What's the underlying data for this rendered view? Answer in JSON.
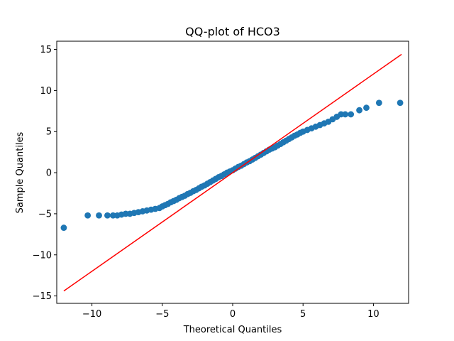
{
  "chart_data": {
    "type": "scatter",
    "title": "QQ-plot of HCO3",
    "xlabel": "Theoretical Quantiles",
    "ylabel": "Sample Quantiles",
    "xlim": [
      -12.5,
      12.5
    ],
    "ylim": [
      -15.9,
      16.0
    ],
    "xticks": [
      -10,
      -5,
      0,
      5,
      10
    ],
    "yticks": [
      -15,
      -10,
      -5,
      0,
      5,
      10,
      15
    ],
    "xtick_labels": [
      "−10",
      "−5",
      "0",
      "5",
      "10"
    ],
    "ytick_labels": [
      "−15",
      "−10",
      "−5",
      "0",
      "5",
      "10",
      "15"
    ],
    "grid": false,
    "point_color": "#1f77b4",
    "line_color": "#ff0000",
    "reference_line": {
      "x": [
        -12.0,
        12.0
      ],
      "y": [
        -14.4,
        14.4
      ]
    },
    "series": [
      {
        "x": [
          -12.0,
          -10.3,
          -9.5,
          -8.9,
          -8.5,
          -8.2,
          -7.9,
          -7.6,
          -7.3,
          -7.0,
          -6.7,
          -6.4,
          -6.1,
          -5.8,
          -5.5,
          -5.2,
          -5.0,
          -4.8,
          -4.6,
          -4.4,
          -4.2,
          -4.0,
          -3.8,
          -3.6,
          -3.4,
          -3.2,
          -3.0,
          -2.8,
          -2.6,
          -2.4,
          -2.2,
          -2.0,
          -1.8,
          -1.6,
          -1.4,
          -1.2,
          -1.0,
          -0.8,
          -0.6,
          -0.4,
          -0.2,
          0.0,
          0.2,
          0.4,
          0.6,
          0.8,
          1.0,
          1.2,
          1.4,
          1.6,
          1.8,
          2.0,
          2.2,
          2.4,
          2.6,
          2.8,
          3.0,
          3.2,
          3.4,
          3.6,
          3.8,
          4.0,
          4.2,
          4.4,
          4.6,
          4.8,
          5.0,
          5.3,
          5.6,
          5.9,
          6.2,
          6.5,
          6.8,
          7.1,
          7.4,
          7.7,
          8.0,
          8.4,
          9.0,
          9.5,
          10.4,
          11.9
        ],
        "y": [
          -6.7,
          -5.2,
          -5.2,
          -5.2,
          -5.2,
          -5.2,
          -5.1,
          -5.0,
          -5.0,
          -4.9,
          -4.8,
          -4.7,
          -4.6,
          -4.5,
          -4.4,
          -4.3,
          -4.1,
          -3.95,
          -3.8,
          -3.6,
          -3.45,
          -3.3,
          -3.1,
          -2.95,
          -2.8,
          -2.6,
          -2.45,
          -2.25,
          -2.1,
          -1.9,
          -1.7,
          -1.55,
          -1.35,
          -1.15,
          -0.95,
          -0.75,
          -0.55,
          -0.4,
          -0.2,
          0.0,
          0.15,
          0.3,
          0.5,
          0.7,
          0.85,
          1.05,
          1.25,
          1.4,
          1.6,
          1.8,
          2.0,
          2.2,
          2.4,
          2.6,
          2.8,
          2.95,
          3.1,
          3.3,
          3.5,
          3.7,
          3.9,
          4.1,
          4.3,
          4.5,
          4.65,
          4.85,
          5.0,
          5.2,
          5.4,
          5.6,
          5.8,
          6.0,
          6.2,
          6.5,
          6.8,
          7.1,
          7.1,
          7.1,
          7.6,
          7.9,
          8.5,
          8.5
        ]
      }
    ]
  }
}
